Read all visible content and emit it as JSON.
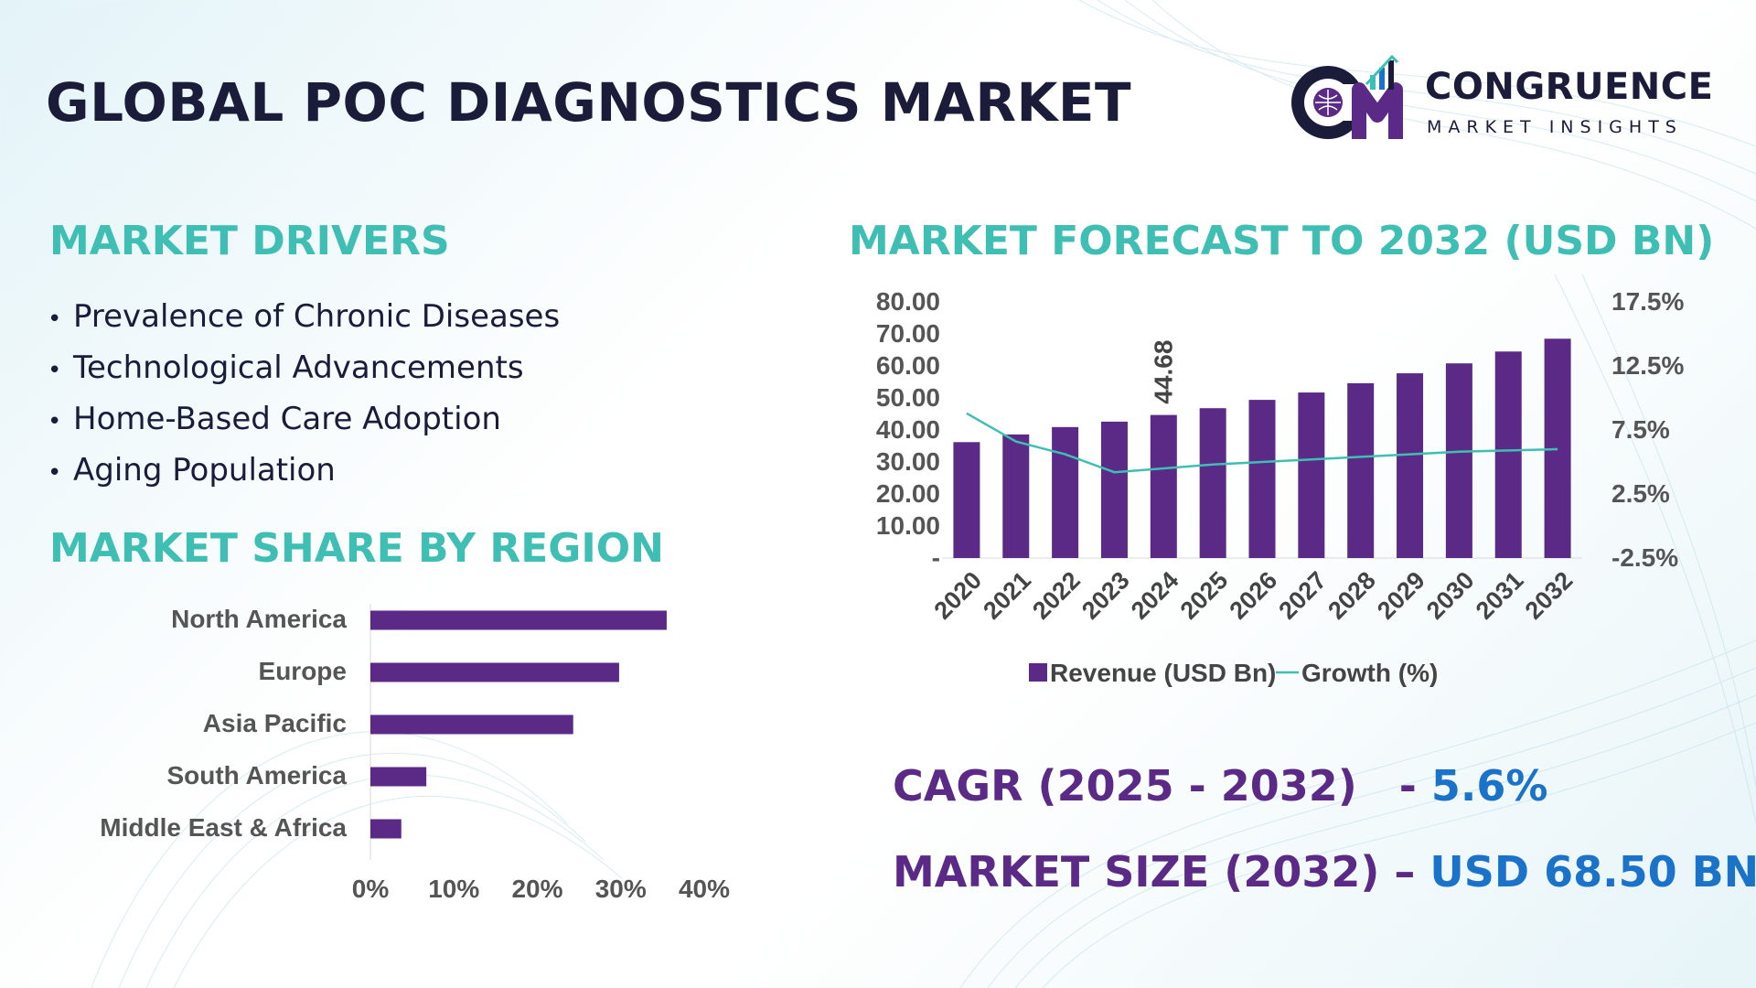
{
  "title": "GLOBAL POC DIAGNOSTICS MARKET",
  "logo": {
    "name": "CONGRUENCE",
    "tagline": "MARKET INSIGHTS"
  },
  "drivers": {
    "title": "MARKET DRIVERS",
    "items": [
      "Prevalence of Chronic Diseases",
      "Technological Advancements",
      "Home-Based Care Adoption",
      "Aging Population"
    ]
  },
  "colors": {
    "bar": "#5b2a86",
    "line": "#3fbfb3",
    "heading": "#3fbfb3",
    "kpi_value": "#1a73c8"
  },
  "chart_data": [
    {
      "type": "bar",
      "orientation": "horizontal",
      "title": "MARKET SHARE BY REGION",
      "categories": [
        "North America",
        "Europe",
        "Asia Pacific",
        "South America",
        "Middle East & Africa"
      ],
      "values": [
        35.5,
        29.8,
        24.3,
        6.7,
        3.7
      ],
      "xlim": [
        0,
        40
      ],
      "xticks": [
        "0%",
        "10%",
        "20%",
        "30%",
        "40%"
      ]
    },
    {
      "type": "bar",
      "title": "MARKET FORECAST TO 2032 (USD BN)",
      "categories": [
        "2020",
        "2021",
        "2022",
        "2023",
        "2024",
        "2025",
        "2026",
        "2027",
        "2028",
        "2029",
        "2030",
        "2031",
        "2032"
      ],
      "series": [
        {
          "name": "Revenue (USD Bn)",
          "type": "bar",
          "axis": "left",
          "values": [
            36.2,
            38.6,
            40.9,
            42.6,
            44.68,
            46.8,
            49.4,
            51.7,
            54.6,
            57.7,
            60.8,
            64.5,
            68.5
          ]
        },
        {
          "name": "Growth (%)",
          "type": "line",
          "axis": "right",
          "values": [
            8.8,
            6.6,
            5.6,
            4.2,
            4.5,
            4.8,
            5.0,
            5.2,
            5.4,
            5.6,
            5.8,
            5.9,
            6.0
          ]
        }
      ],
      "data_labels": [
        {
          "category": "2024",
          "text": "44.68"
        }
      ],
      "ylim_left": [
        0,
        80
      ],
      "yticks_left": [
        "-",
        "10.00",
        "20.00",
        "30.00",
        "40.00",
        "50.00",
        "60.00",
        "70.00",
        "80.00"
      ],
      "ylim_right": [
        -2.5,
        17.5
      ],
      "yticks_right": [
        "-2.5%",
        "2.5%",
        "7.5%",
        "12.5%",
        "17.5%"
      ],
      "legend": "bottom"
    }
  ],
  "kpis": {
    "cagr": {
      "label": "CAGR (2025 - 2032)",
      "sep": "- ",
      "value": "5.6%"
    },
    "market_size": {
      "label": "MARKET SIZE (2032)",
      "sep": " – ",
      "value": "USD 68.50 BN"
    }
  }
}
